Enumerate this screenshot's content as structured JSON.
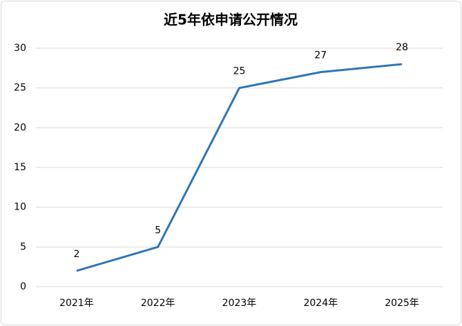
{
  "chart_data": {
    "type": "line",
    "title": "近5年依申请公开情况",
    "categories": [
      "2021年",
      "2022年",
      "2023年",
      "2024年",
      "2025年"
    ],
    "values": [
      2,
      5,
      25,
      27,
      28
    ],
    "color": "#2e75b6",
    "ylim": [
      0,
      30
    ],
    "yticks": [
      0,
      5,
      10,
      15,
      20,
      25,
      30
    ],
    "grid": true
  }
}
